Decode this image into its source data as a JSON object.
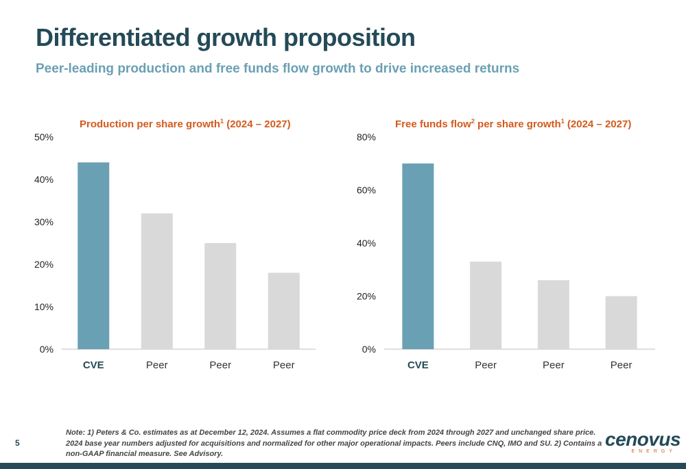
{
  "slide": {
    "title": "Differentiated growth proposition",
    "subtitle": "Peer-leading production and free funds flow growth to drive increased returns",
    "page_number": "5",
    "note": "Note: 1) Peters & Co. estimates as at December 12, 2024. Assumes a flat commodity price deck from 2024 through 2027 and unchanged share price. 2024 base year numbers adjusted for acquisitions and normalized for other major operational impacts. Peers include CNQ, IMO and SU. 2) Contains a non-GAAP financial measure. See Advisory.",
    "logo_text": "cenovus",
    "logo_subtext": "ENERGY"
  },
  "colors": {
    "accent": "#6aa0b4",
    "peer": "#d9d9d9",
    "title_orange": "#d35a1c",
    "navy": "#244a57"
  },
  "chart_data": [
    {
      "type": "bar",
      "title_parts": [
        "Production per share growth",
        "1",
        " (2024 – 2027)"
      ],
      "categories": [
        "CVE",
        "Peer",
        "Peer",
        "Peer"
      ],
      "values": [
        44,
        32,
        25,
        18
      ],
      "unit": "%",
      "ylim": [
        0,
        50
      ],
      "yticks": [
        "0%",
        "10%",
        "20%",
        "30%",
        "40%",
        "50%"
      ],
      "highlight_index": 0,
      "grid": false
    },
    {
      "type": "bar",
      "title_parts": [
        "Free funds flow",
        "2",
        " per share growth",
        "1",
        " (2024 – 2027)"
      ],
      "categories": [
        "CVE",
        "Peer",
        "Peer",
        "Peer"
      ],
      "values": [
        70,
        33,
        26,
        20
      ],
      "unit": "%",
      "ylim": [
        0,
        80
      ],
      "yticks": [
        "0%",
        "20%",
        "40%",
        "60%",
        "80%"
      ],
      "highlight_index": 0,
      "grid": false
    }
  ]
}
